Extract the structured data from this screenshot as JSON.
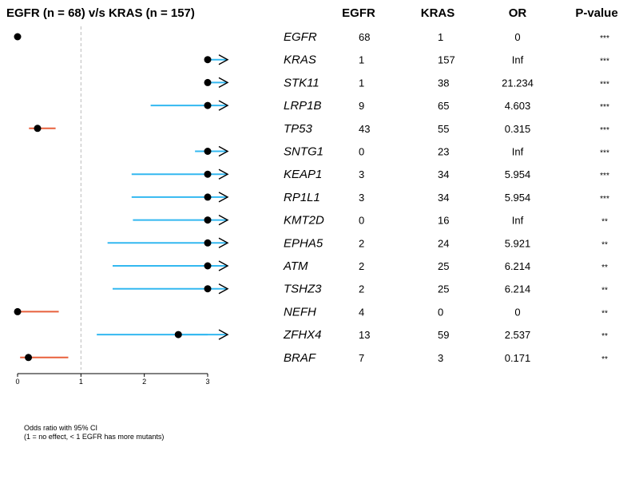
{
  "title": "EGFR (n = 68) v/s KRAS (n = 157)",
  "note": [
    "Odds ratio with 95% CI",
    "(1 = no effect, < 1 EGFR has more mutants)"
  ],
  "columns": [
    "EGFR",
    "KRAS",
    "OR",
    "P-value"
  ],
  "colors": {
    "egfr_side": "#e8603c",
    "kras_side": "#33b8f0",
    "point": "#000000",
    "reference_line": "#bbbbbb"
  },
  "chart_data": {
    "type": "forest",
    "xlim": [
      0,
      3
    ],
    "x_ticks": [
      "0",
      "1",
      "2",
      "3"
    ],
    "reference_line": 1,
    "rows": [
      {
        "gene": "EGFR",
        "egfr": "68",
        "kras": "1",
        "or": "0",
        "p": "***",
        "est": 0,
        "lo": 0,
        "hi": 0,
        "arrow": false
      },
      {
        "gene": "KRAS",
        "egfr": "1",
        "kras": "157",
        "or": "Inf",
        "p": "***",
        "est": 3,
        "lo": 3,
        "hi": 3,
        "arrow": true
      },
      {
        "gene": "STK11",
        "egfr": "1",
        "kras": "38",
        "or": "21.234",
        "p": "***",
        "est": 3,
        "lo": 3,
        "hi": 3,
        "arrow": true
      },
      {
        "gene": "LRP1B",
        "egfr": "9",
        "kras": "65",
        "or": "4.603",
        "p": "***",
        "est": 3,
        "lo": 2.1,
        "hi": 3,
        "arrow": true
      },
      {
        "gene": "TP53",
        "egfr": "43",
        "kras": "55",
        "or": "0.315",
        "p": "***",
        "est": 0.315,
        "lo": 0.18,
        "hi": 0.6,
        "arrow": false
      },
      {
        "gene": "SNTG1",
        "egfr": "0",
        "kras": "23",
        "or": "Inf",
        "p": "***",
        "est": 3,
        "lo": 2.8,
        "hi": 3,
        "arrow": true
      },
      {
        "gene": "KEAP1",
        "egfr": "3",
        "kras": "34",
        "or": "5.954",
        "p": "***",
        "est": 3,
        "lo": 1.8,
        "hi": 3,
        "arrow": true
      },
      {
        "gene": "RP1L1",
        "egfr": "3",
        "kras": "34",
        "or": "5.954",
        "p": "***",
        "est": 3,
        "lo": 1.8,
        "hi": 3,
        "arrow": true
      },
      {
        "gene": "KMT2D",
        "egfr": "0",
        "kras": "16",
        "or": "Inf",
        "p": "**",
        "est": 3,
        "lo": 1.82,
        "hi": 3,
        "arrow": true
      },
      {
        "gene": "EPHA5",
        "egfr": "2",
        "kras": "24",
        "or": "5.921",
        "p": "**",
        "est": 3,
        "lo": 1.42,
        "hi": 3,
        "arrow": true
      },
      {
        "gene": "ATM",
        "egfr": "2",
        "kras": "25",
        "or": "6.214",
        "p": "**",
        "est": 3,
        "lo": 1.5,
        "hi": 3,
        "arrow": true
      },
      {
        "gene": "TSHZ3",
        "egfr": "2",
        "kras": "25",
        "or": "6.214",
        "p": "**",
        "est": 3,
        "lo": 1.5,
        "hi": 3,
        "arrow": true
      },
      {
        "gene": "NEFH",
        "egfr": "4",
        "kras": "0",
        "or": "0",
        "p": "**",
        "est": 0,
        "lo": 0,
        "hi": 0.65,
        "arrow": false
      },
      {
        "gene": "ZFHX4",
        "egfr": "13",
        "kras": "59",
        "or": "2.537",
        "p": "**",
        "est": 2.537,
        "lo": 1.25,
        "hi": 3,
        "arrow": true
      },
      {
        "gene": "BRAF",
        "egfr": "7",
        "kras": "3",
        "or": "0.171",
        "p": "**",
        "est": 0.171,
        "lo": 0.04,
        "hi": 0.8,
        "arrow": false
      }
    ]
  }
}
